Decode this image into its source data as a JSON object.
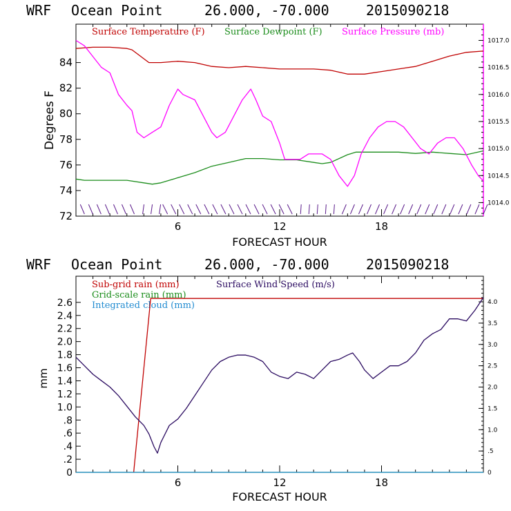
{
  "chart_data": [
    {
      "type": "line",
      "title": {
        "model": "WRF",
        "location": "Ocean Point",
        "coords": "26.000, -70.000",
        "date": "2015090218"
      },
      "xlabel": "FORECAST HOUR",
      "ylabel": "Degrees F",
      "xlim": [
        0,
        24
      ],
      "ylim": [
        72,
        87
      ],
      "y2lim": [
        1013.75,
        1017.3
      ],
      "xticks": [
        6,
        12,
        18
      ],
      "yticks": [
        72,
        74,
        76,
        78,
        80,
        82,
        84
      ],
      "y2ticks": [
        "1014.0",
        "1014.5",
        "1015.0",
        "1015.5",
        "1016.0",
        "1016.5",
        "1017.0"
      ],
      "legend": [
        {
          "label": "Surface Temperature (F)",
          "color": "#c00000"
        },
        {
          "label": "Surface Dewpoint (F)",
          "color": "#1a8c1a"
        },
        {
          "label": "Surface Pressure (mb)",
          "color": "#ff00ff"
        }
      ],
      "series": [
        {
          "name": "Surface Temperature (F)",
          "axis": "left",
          "color": "#c00000",
          "x": [
            0,
            1,
            2,
            3,
            3.3,
            4.3,
            5,
            6,
            7,
            8,
            9,
            10,
            11,
            12,
            13,
            14,
            15,
            16,
            17,
            18,
            19,
            20,
            21,
            22,
            23,
            24
          ],
          "y": [
            85.1,
            85.2,
            85.2,
            85.1,
            85.0,
            84.0,
            84.0,
            84.1,
            84.0,
            83.7,
            83.6,
            83.7,
            83.6,
            83.5,
            83.5,
            83.5,
            83.4,
            83.1,
            83.1,
            83.3,
            83.5,
            83.7,
            84.1,
            84.5,
            84.8,
            84.9
          ]
        },
        {
          "name": "Surface Dewpoint (F)",
          "axis": "left",
          "color": "#1a8c1a",
          "x": [
            0,
            0.5,
            1,
            2,
            3,
            4,
            4.5,
            5,
            6,
            7,
            8,
            9,
            10,
            11,
            12,
            13,
            14,
            14.5,
            15,
            16,
            16.5,
            17,
            18,
            19,
            20,
            21,
            22,
            23,
            24
          ],
          "y": [
            74.9,
            74.8,
            74.8,
            74.8,
            74.8,
            74.6,
            74.5,
            74.6,
            75.0,
            75.4,
            75.9,
            76.2,
            76.5,
            76.5,
            76.4,
            76.4,
            76.2,
            76.1,
            76.2,
            76.8,
            77.0,
            77.0,
            77.0,
            77.0,
            76.9,
            77.0,
            76.9,
            76.8,
            77.1
          ]
        },
        {
          "name": "Surface Pressure (mb)",
          "axis": "right",
          "color": "#ff00ff",
          "x": [
            0,
            0.5,
            1,
            1.5,
            2,
            2.5,
            3,
            3.3,
            3.6,
            4,
            4.5,
            5,
            5.5,
            6,
            6.3,
            7,
            7.5,
            8,
            8.3,
            8.8,
            9.3,
            9.8,
            10.3,
            10.6,
            11,
            11.5,
            12,
            12.3,
            12.8,
            13.2,
            13.7,
            14,
            14.5,
            15,
            15.5,
            16,
            16.4,
            16.8,
            17.3,
            17.8,
            18.3,
            18.8,
            19.3,
            19.8,
            20.3,
            20.8,
            21.3,
            21.8,
            22.3,
            22.8,
            23.3,
            23.7,
            24
          ],
          "y": [
            1017.0,
            1016.9,
            1016.7,
            1016.5,
            1016.4,
            1016.0,
            1015.8,
            1015.7,
            1015.3,
            1015.2,
            1015.3,
            1015.4,
            1015.8,
            1016.1,
            1016.0,
            1015.9,
            1015.6,
            1015.3,
            1015.2,
            1015.3,
            1015.6,
            1015.9,
            1016.1,
            1015.9,
            1015.6,
            1015.5,
            1015.1,
            1014.8,
            1014.8,
            1014.8,
            1014.9,
            1014.9,
            1014.9,
            1014.8,
            1014.5,
            1014.3,
            1014.5,
            1014.9,
            1015.2,
            1015.4,
            1015.5,
            1015.5,
            1015.4,
            1015.2,
            1015.0,
            1014.9,
            1015.1,
            1015.2,
            1015.2,
            1015.0,
            1014.7,
            1014.5,
            1014.4
          ]
        }
      ],
      "wind_barbs": {
        "count": 49,
        "from_hour": 0.5,
        "to_hour": 24
      }
    },
    {
      "type": "line",
      "title": {
        "model": "WRF",
        "location": "Ocean Point",
        "coords": "26.000, -70.000",
        "date": "2015090218"
      },
      "xlabel": "FORECAST HOUR",
      "ylabel": "mm",
      "xlim": [
        0,
        24
      ],
      "ylim": [
        0,
        3.0
      ],
      "y2lim": [
        0,
        4.6
      ],
      "xticks": [
        6,
        12,
        18
      ],
      "yticks": [
        "0",
        ".2",
        ".4",
        ".6",
        ".8",
        "1.0",
        "1.2",
        "1.4",
        "1.6",
        "1.8",
        "2.0",
        "2.2",
        "2.4",
        "2.6"
      ],
      "y2ticks": [
        "0",
        ".5",
        "1.0",
        "1.5",
        "2.0",
        "2.5",
        "3.0",
        "3.5",
        "4.0"
      ],
      "legend": [
        {
          "label": "Sub-grid rain (mm)",
          "color": "#c00000"
        },
        {
          "label": "Surface Wind Speed (m/s)",
          "color": "#2a0a60"
        },
        {
          "label": "Grid-scale rain (mm)",
          "color": "#1a8c1a"
        },
        {
          "label": "Integrated cloud (mm)",
          "color": "#1f8ad0"
        }
      ],
      "series": [
        {
          "name": "Sub-grid rain (mm)",
          "axis": "left",
          "color": "#c00000",
          "x": [
            3.4,
            4.4,
            24
          ],
          "y": [
            0,
            2.66,
            2.66
          ]
        },
        {
          "name": "Grid-scale rain (mm)",
          "axis": "left",
          "color": "#1a8c1a",
          "x": [
            0,
            24
          ],
          "y": [
            0,
            0
          ]
        },
        {
          "name": "Integrated cloud (mm)",
          "axis": "left",
          "color": "#1f8ad0",
          "x": [
            0,
            24
          ],
          "y": [
            0,
            0
          ]
        },
        {
          "name": "Surface Wind Speed (m/s)",
          "axis": "right",
          "color": "#2a0a60",
          "x": [
            0,
            0.5,
            1,
            1.5,
            2,
            2.5,
            3,
            3.5,
            4,
            4.3,
            4.6,
            4.8,
            5,
            5.5,
            6,
            6.5,
            7,
            7.5,
            8,
            8.5,
            9,
            9.5,
            10,
            10.5,
            11,
            11.5,
            12,
            12.5,
            13,
            13.5,
            14,
            14.5,
            15,
            15.5,
            16,
            16.3,
            16.7,
            17,
            17.5,
            18,
            18.5,
            19,
            19.5,
            20,
            20.5,
            21,
            21.5,
            22,
            22.5,
            23,
            23.5,
            24
          ],
          "y": [
            2.7,
            2.5,
            2.3,
            2.15,
            2.0,
            1.8,
            1.55,
            1.3,
            1.1,
            0.9,
            0.6,
            0.45,
            0.7,
            1.1,
            1.25,
            1.5,
            1.8,
            2.1,
            2.4,
            2.6,
            2.7,
            2.75,
            2.75,
            2.7,
            2.6,
            2.35,
            2.25,
            2.2,
            2.35,
            2.3,
            2.2,
            2.4,
            2.6,
            2.65,
            2.75,
            2.8,
            2.6,
            2.4,
            2.2,
            2.35,
            2.5,
            2.5,
            2.6,
            2.8,
            3.1,
            3.25,
            3.35,
            3.6,
            3.6,
            3.55,
            3.8,
            4.1
          ]
        }
      ]
    }
  ]
}
